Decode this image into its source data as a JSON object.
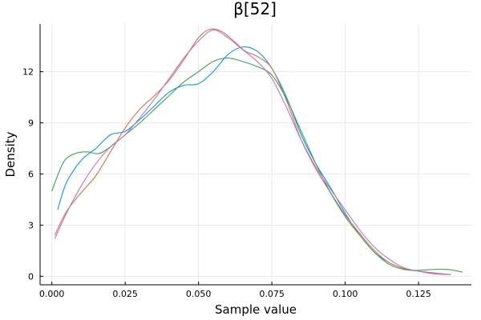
{
  "chart_data": {
    "type": "line",
    "title": "β[52]",
    "xlabel": "Sample value",
    "ylabel": "Density",
    "xlim": [
      -0.004,
      0.143
    ],
    "ylim": [
      -0.5,
      14.8
    ],
    "xticks": [
      0.0,
      0.025,
      0.05,
      0.075,
      0.1,
      0.125
    ],
    "xtick_labels": [
      "0.000",
      "0.025",
      "0.050",
      "0.075",
      "0.100",
      "0.125"
    ],
    "yticks": [
      0,
      3,
      6,
      9,
      12
    ],
    "ytick_labels": [
      "0",
      "3",
      "6",
      "9",
      "12"
    ],
    "grid": true,
    "legend": "none",
    "series": [
      {
        "color": "#009af9",
        "points": [
          [
            0.002,
            3.9
          ],
          [
            0.005,
            5.5
          ],
          [
            0.01,
            6.8
          ],
          [
            0.015,
            7.5
          ],
          [
            0.02,
            8.3
          ],
          [
            0.025,
            8.5
          ],
          [
            0.03,
            9.2
          ],
          [
            0.035,
            10.0
          ],
          [
            0.04,
            10.8
          ],
          [
            0.045,
            11.2
          ],
          [
            0.05,
            11.3
          ],
          [
            0.055,
            12.0
          ],
          [
            0.06,
            13.0
          ],
          [
            0.065,
            13.45
          ],
          [
            0.07,
            13.2
          ],
          [
            0.075,
            12.2
          ],
          [
            0.08,
            10.5
          ],
          [
            0.085,
            8.3
          ],
          [
            0.09,
            6.6
          ],
          [
            0.095,
            5.2
          ],
          [
            0.1,
            3.7
          ],
          [
            0.105,
            2.4
          ],
          [
            0.11,
            1.4
          ],
          [
            0.115,
            0.8
          ],
          [
            0.12,
            0.45
          ],
          [
            0.125,
            0.3
          ],
          [
            0.13,
            0.2
          ],
          [
            0.136,
            0.1
          ]
        ]
      },
      {
        "color": "#e26f46",
        "points": [
          [
            0.001,
            2.4
          ],
          [
            0.005,
            3.8
          ],
          [
            0.01,
            4.9
          ],
          [
            0.015,
            5.9
          ],
          [
            0.02,
            7.3
          ],
          [
            0.025,
            8.7
          ],
          [
            0.03,
            9.8
          ],
          [
            0.035,
            10.6
          ],
          [
            0.04,
            11.5
          ],
          [
            0.045,
            12.7
          ],
          [
            0.05,
            14.0
          ],
          [
            0.054,
            14.5
          ],
          [
            0.058,
            14.35
          ],
          [
            0.062,
            13.8
          ],
          [
            0.066,
            13.2
          ],
          [
            0.07,
            12.9
          ],
          [
            0.075,
            12.2
          ],
          [
            0.08,
            10.3
          ],
          [
            0.085,
            8.0
          ],
          [
            0.09,
            6.3
          ],
          [
            0.095,
            4.9
          ],
          [
            0.1,
            3.6
          ],
          [
            0.105,
            2.5
          ],
          [
            0.11,
            1.5
          ],
          [
            0.115,
            0.8
          ],
          [
            0.12,
            0.45
          ],
          [
            0.125,
            0.3
          ],
          [
            0.13,
            0.2
          ],
          [
            0.135,
            0.1
          ]
        ]
      },
      {
        "color": "#3da44d",
        "points": [
          [
            0.0,
            5.0
          ],
          [
            0.004,
            6.7
          ],
          [
            0.008,
            7.2
          ],
          [
            0.012,
            7.3
          ],
          [
            0.016,
            7.2
          ],
          [
            0.02,
            7.6
          ],
          [
            0.025,
            8.3
          ],
          [
            0.03,
            9.0
          ],
          [
            0.035,
            9.8
          ],
          [
            0.04,
            10.6
          ],
          [
            0.045,
            11.4
          ],
          [
            0.05,
            12.0
          ],
          [
            0.055,
            12.6
          ],
          [
            0.06,
            12.8
          ],
          [
            0.065,
            12.6
          ],
          [
            0.07,
            12.3
          ],
          [
            0.075,
            11.8
          ],
          [
            0.08,
            10.4
          ],
          [
            0.085,
            8.5
          ],
          [
            0.09,
            6.6
          ],
          [
            0.095,
            4.9
          ],
          [
            0.1,
            3.5
          ],
          [
            0.105,
            2.4
          ],
          [
            0.11,
            1.4
          ],
          [
            0.115,
            0.7
          ],
          [
            0.12,
            0.4
          ],
          [
            0.125,
            0.35
          ],
          [
            0.13,
            0.4
          ],
          [
            0.135,
            0.4
          ],
          [
            0.14,
            0.25
          ]
        ]
      },
      {
        "color": "#c271d2",
        "points": [
          [
            0.001,
            2.2
          ],
          [
            0.005,
            3.7
          ],
          [
            0.01,
            5.3
          ],
          [
            0.015,
            6.6
          ],
          [
            0.02,
            7.6
          ],
          [
            0.025,
            8.3
          ],
          [
            0.03,
            9.3
          ],
          [
            0.035,
            10.4
          ],
          [
            0.04,
            11.6
          ],
          [
            0.045,
            12.8
          ],
          [
            0.05,
            13.8
          ],
          [
            0.055,
            14.45
          ],
          [
            0.06,
            14.0
          ],
          [
            0.065,
            13.3
          ],
          [
            0.07,
            12.6
          ],
          [
            0.075,
            11.6
          ],
          [
            0.08,
            9.9
          ],
          [
            0.085,
            8.0
          ],
          [
            0.09,
            6.4
          ],
          [
            0.095,
            5.1
          ],
          [
            0.1,
            3.9
          ],
          [
            0.105,
            2.7
          ],
          [
            0.11,
            1.7
          ],
          [
            0.115,
            1.0
          ],
          [
            0.12,
            0.5
          ],
          [
            0.125,
            0.3
          ],
          [
            0.13,
            0.15
          ],
          [
            0.136,
            0.1
          ]
        ]
      }
    ]
  }
}
